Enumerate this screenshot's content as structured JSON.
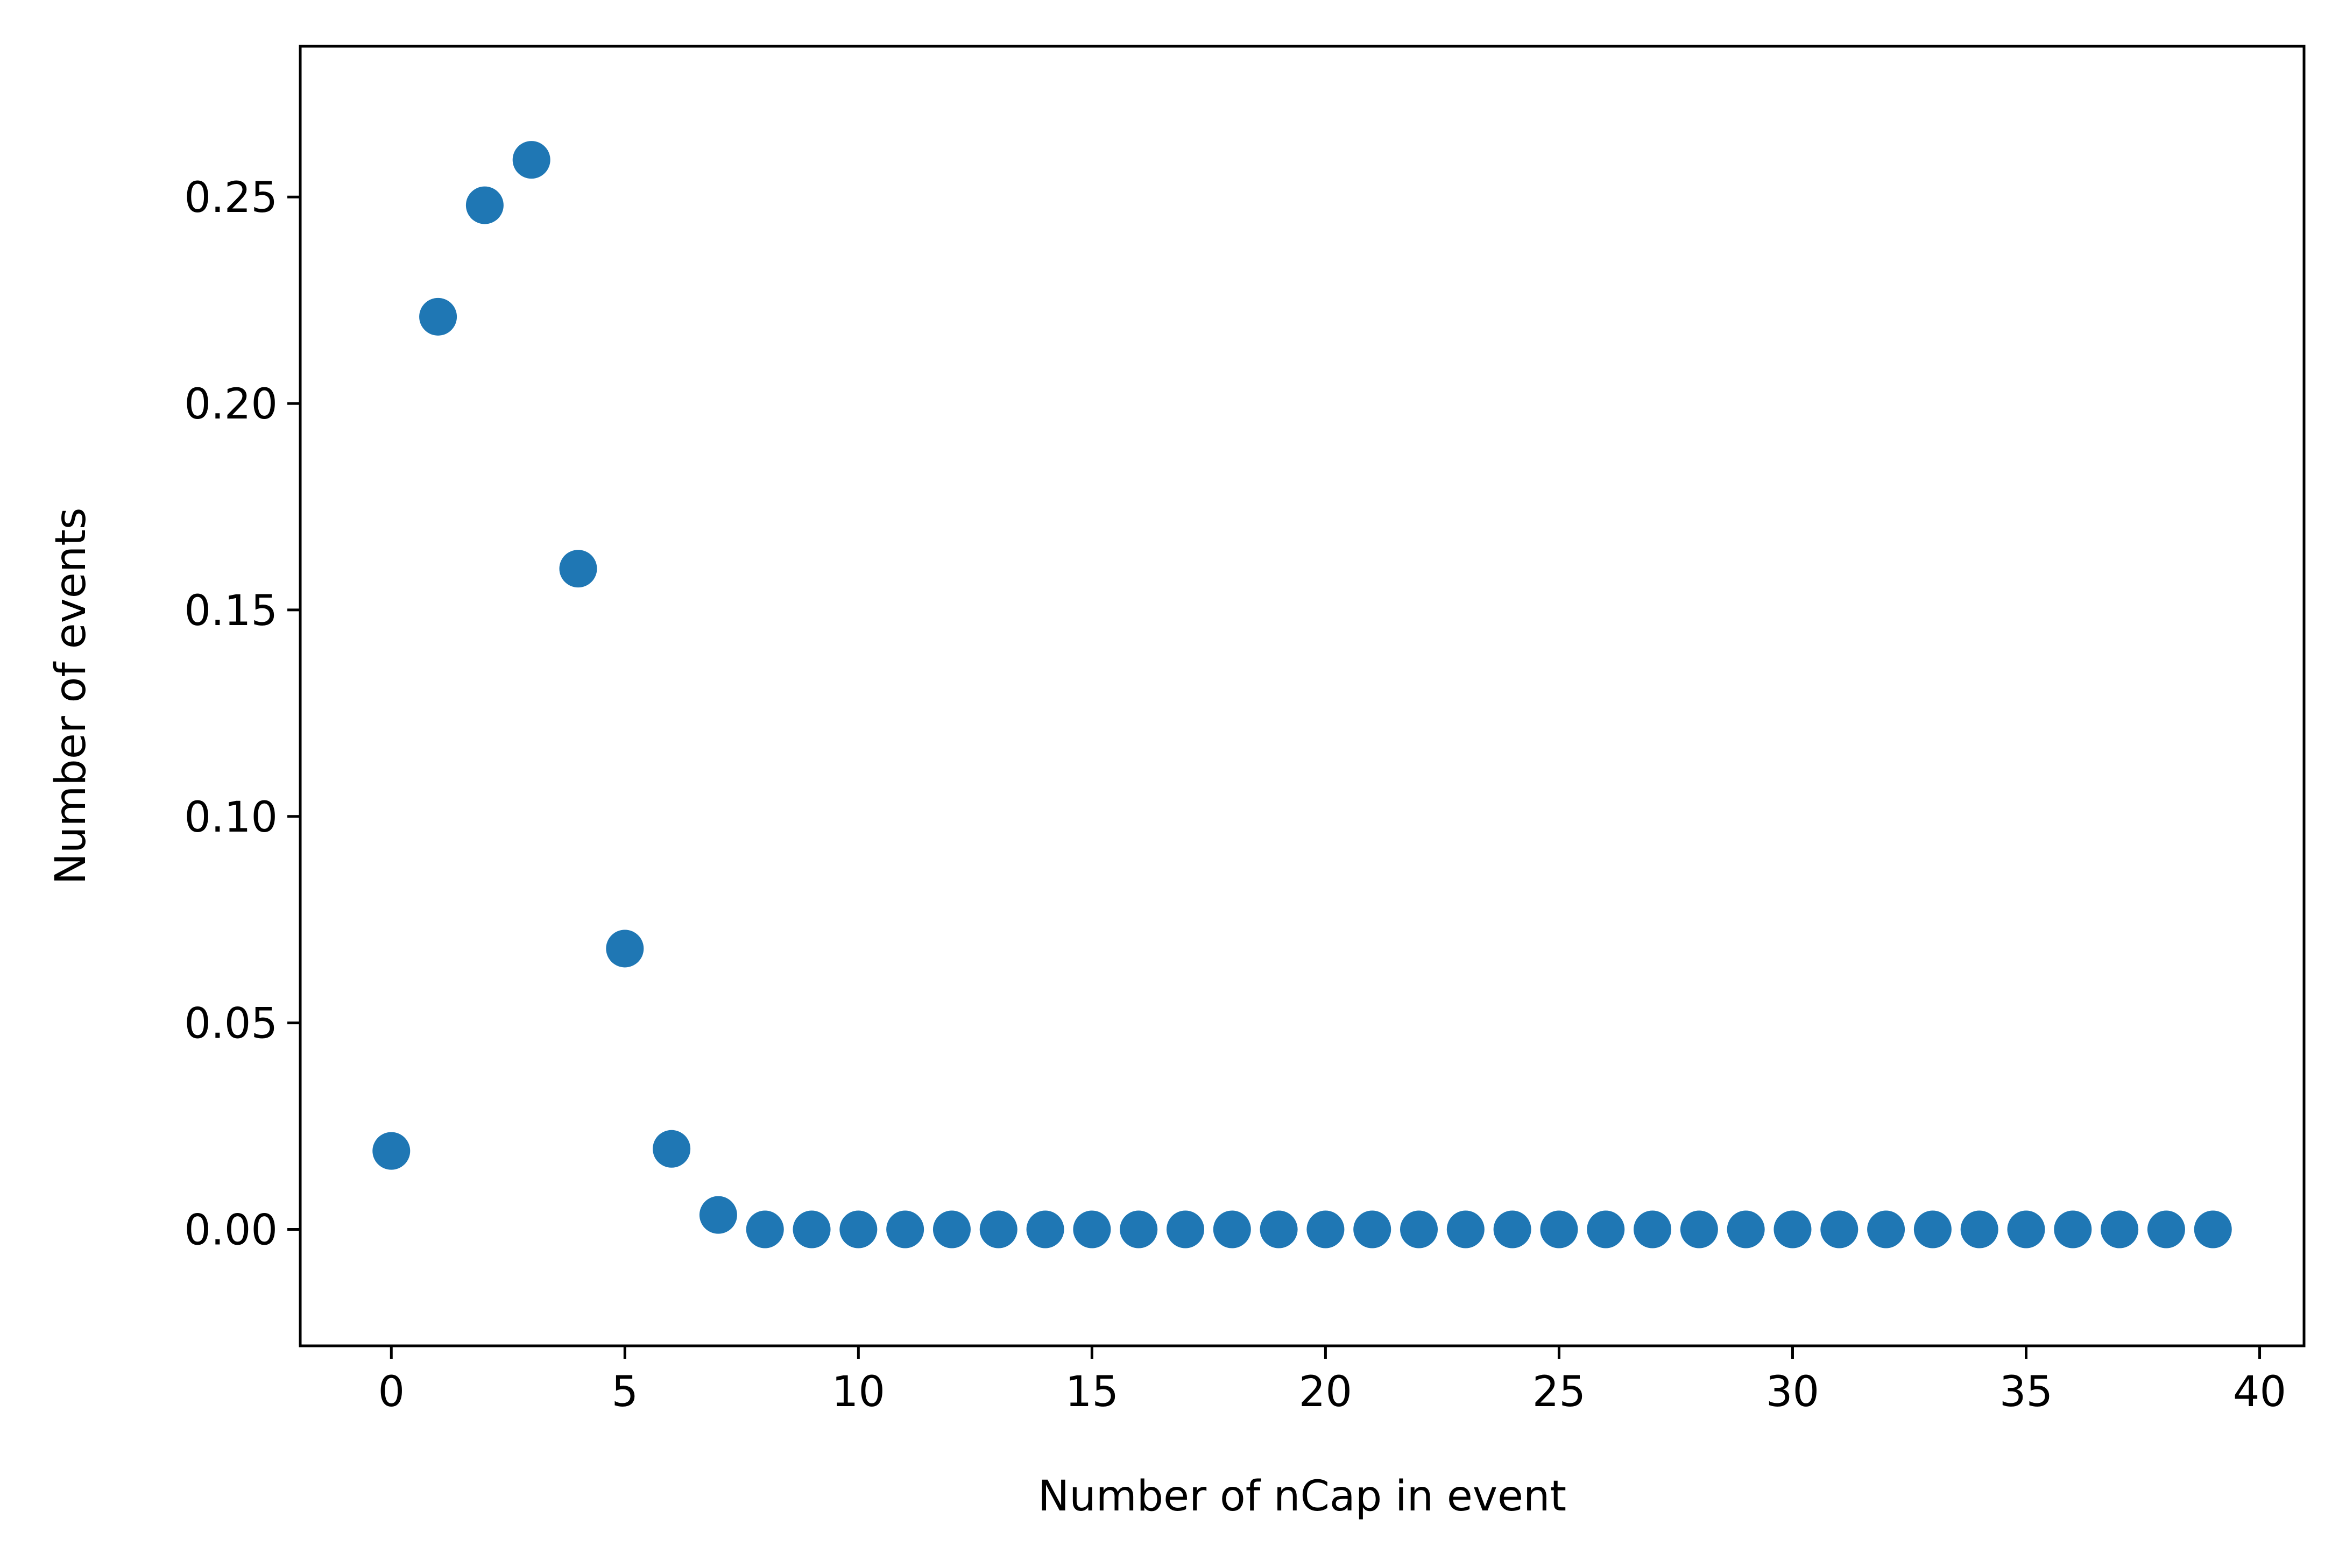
{
  "chart_data": {
    "type": "scatter",
    "title": "",
    "xlabel": "Number of nCap in event",
    "ylabel": "Number of events",
    "xlim": [
      -1.95,
      40.95
    ],
    "ylim": [
      -0.0282,
      0.2865
    ],
    "xticks": [
      0,
      5,
      10,
      15,
      20,
      25,
      30,
      35,
      40
    ],
    "yticks": [
      0.0,
      0.05,
      0.1,
      0.15,
      0.2,
      0.25
    ],
    "ytick_labels": [
      "0.00",
      "0.05",
      "0.10",
      "0.15",
      "0.20",
      "0.25"
    ],
    "grid": false,
    "marker_color": "#1f77b4",
    "series": [
      {
        "x": [
          0,
          1,
          2,
          3,
          4,
          5,
          6,
          7,
          8,
          9,
          10,
          11,
          12,
          13,
          14,
          15,
          16,
          17,
          18,
          19,
          20,
          21,
          22,
          23,
          24,
          25,
          26,
          27,
          28,
          29,
          30,
          31,
          32,
          33,
          34,
          35,
          36,
          37,
          38,
          39
        ],
        "y": [
          0.019,
          0.221,
          0.248,
          0.259,
          0.16,
          0.068,
          0.0195,
          0.0035,
          0,
          0,
          0,
          0,
          0,
          0,
          0,
          0,
          0,
          0,
          0,
          0,
          0,
          0,
          0,
          0,
          0,
          0,
          0,
          0,
          0,
          0,
          0,
          0,
          0,
          0,
          0,
          0,
          0,
          0,
          0,
          0
        ]
      }
    ]
  }
}
